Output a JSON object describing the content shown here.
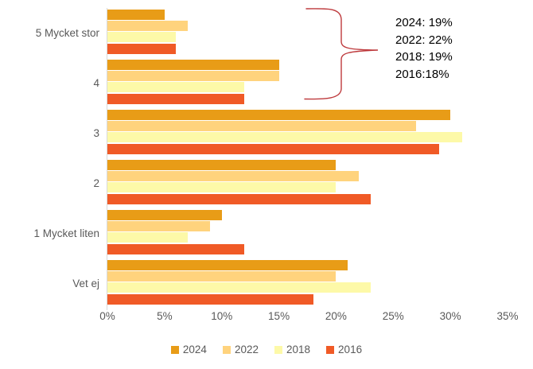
{
  "chart_data": {
    "type": "bar",
    "orientation": "horizontal",
    "title": "",
    "xlabel": "",
    "ylabel": "",
    "categories": [
      "5 Mycket stor",
      "4",
      "3",
      "2",
      "1 Mycket liten",
      "Vet ej"
    ],
    "series": [
      {
        "name": "2024",
        "color": "#E89C17",
        "values": [
          5,
          15,
          30,
          20,
          10,
          21
        ]
      },
      {
        "name": "2022",
        "color": "#FFD37D",
        "values": [
          7,
          15,
          27,
          22,
          9,
          20
        ]
      },
      {
        "name": "2018",
        "color": "#FDF9A8",
        "values": [
          6,
          12,
          31,
          20,
          7,
          23
        ]
      },
      {
        "name": "2016",
        "color": "#F05A26",
        "values": [
          6,
          12,
          29,
          23,
          12,
          18
        ]
      }
    ],
    "xlim": [
      0,
      35
    ],
    "x_ticks": [
      "0%",
      "5%",
      "10%",
      "15%",
      "20%",
      "25%",
      "30%",
      "35%"
    ],
    "grid": false,
    "legend_position": "bottom"
  },
  "annotation": {
    "lines": [
      "2024: 19%",
      "2022: 22%",
      "2018: 19%",
      "2016:18%"
    ],
    "brace_color": "#BE3A3D",
    "text_color": "#000000"
  },
  "style_colors": {
    "axis_text": "#595959",
    "axis_line": "#D9D9D9",
    "background": "#FFFFFF"
  }
}
